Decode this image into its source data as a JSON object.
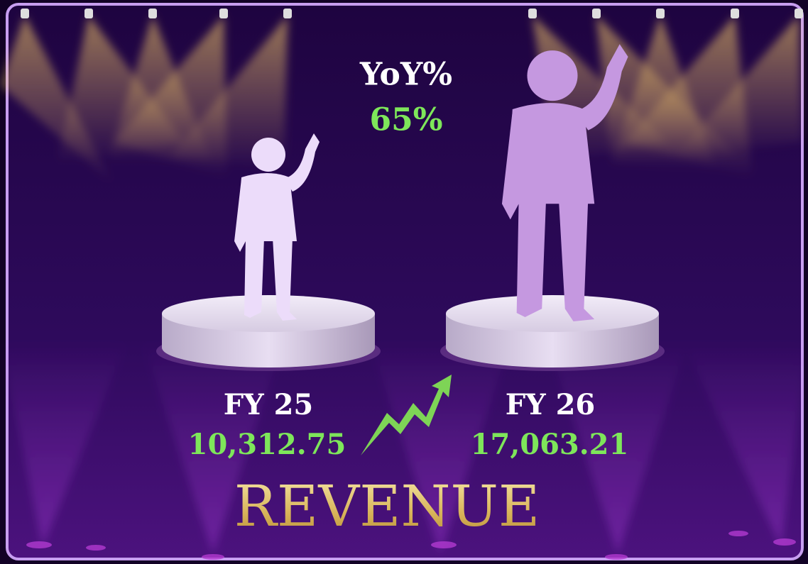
{
  "yoy": {
    "label": "YoY%",
    "value": "65%"
  },
  "periods": [
    {
      "label": "FY 25",
      "value": "10,312.75"
    },
    {
      "label": "FY 26",
      "value": "17,063.21"
    }
  ],
  "title": "REVENUE"
}
